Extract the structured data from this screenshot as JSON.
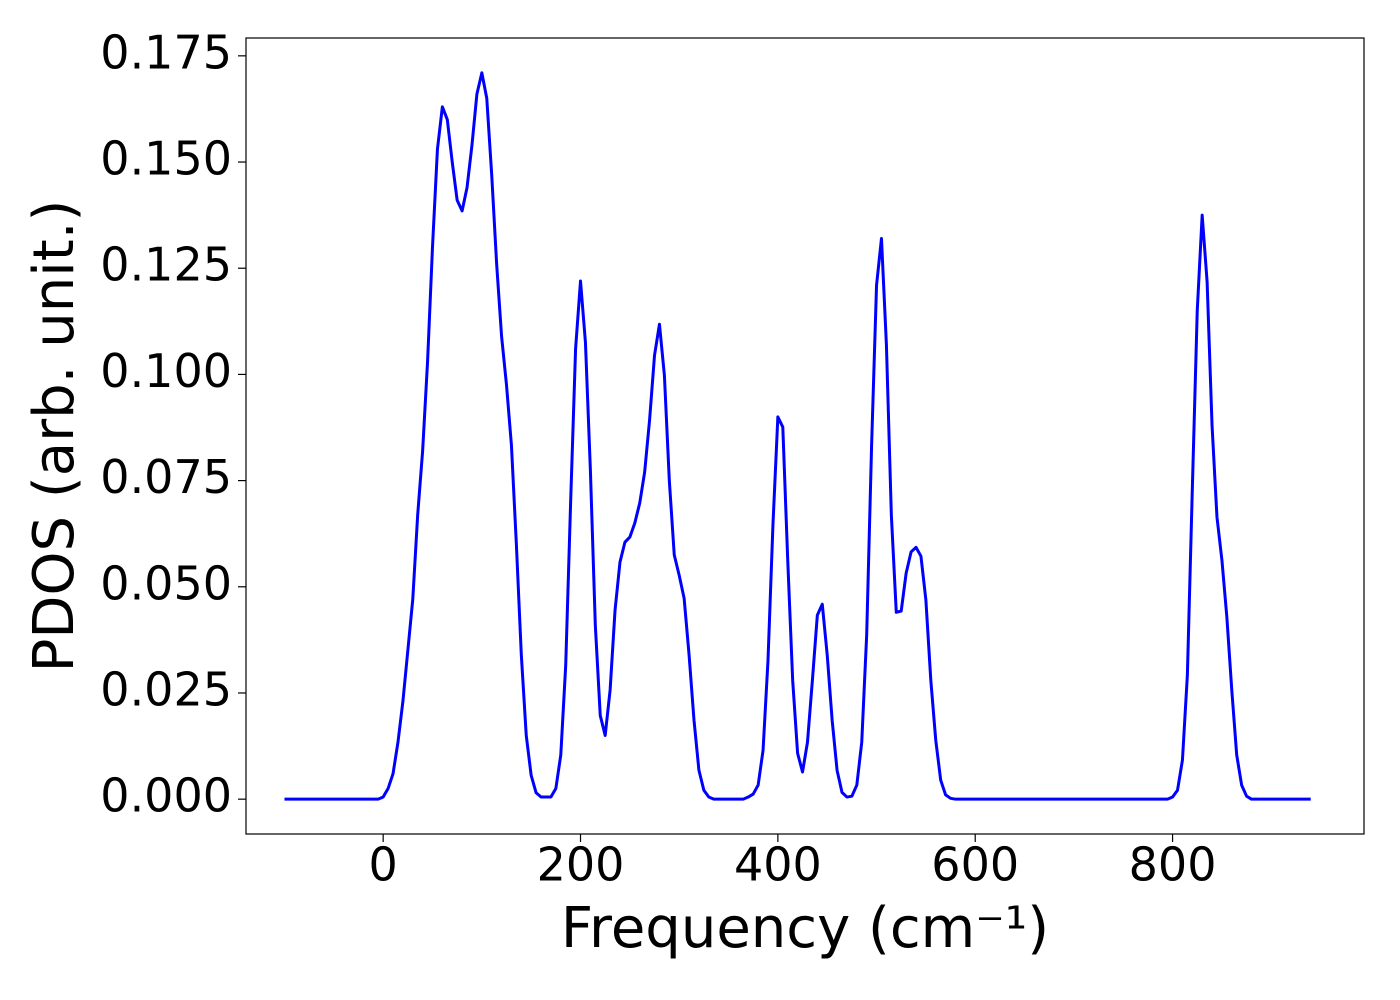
{
  "chart_data": {
    "type": "line",
    "xlabel": "Frequency (cm⁻¹)",
    "ylabel": "PDOS (arb. unit.)",
    "color": "#0000ff",
    "x": [
      -100,
      -5,
      0,
      5,
      10,
      15,
      20,
      25,
      30,
      35,
      40,
      45,
      50,
      55,
      60,
      65,
      70,
      75,
      80,
      85,
      90,
      95,
      100,
      105,
      110,
      115,
      120,
      125,
      130,
      135,
      140,
      145,
      150,
      155,
      160,
      165,
      170,
      175,
      180,
      185,
      190,
      195,
      200,
      205,
      210,
      215,
      220,
      225,
      230,
      235,
      240,
      245,
      250,
      255,
      260,
      265,
      270,
      275,
      280,
      285,
      290,
      295,
      300,
      305,
      310,
      315,
      320,
      325,
      330,
      335,
      365,
      370,
      375,
      380,
      385,
      390,
      395,
      400,
      405,
      410,
      415,
      420,
      425,
      430,
      435,
      440,
      445,
      450,
      455,
      460,
      465,
      470,
      475,
      480,
      485,
      490,
      495,
      500,
      505,
      510,
      515,
      520,
      525,
      530,
      535,
      540,
      545,
      550,
      555,
      560,
      565,
      570,
      575,
      580,
      795,
      800,
      805,
      810,
      815,
      820,
      825,
      830,
      835,
      840,
      845,
      850,
      855,
      860,
      865,
      870,
      875,
      880,
      940
    ],
    "values": [
      0,
      0,
      0.0005,
      0.0025,
      0.006,
      0.0134,
      0.023,
      0.035,
      0.047,
      0.067,
      0.082,
      0.103,
      0.13,
      0.153,
      0.163,
      0.16,
      0.15,
      0.141,
      0.1385,
      0.144,
      0.154,
      0.166,
      0.171,
      0.165,
      0.147,
      0.126,
      0.109,
      0.0975,
      0.0833,
      0.06,
      0.034,
      0.015,
      0.0056,
      0.0015,
      0.0005,
      0.0005,
      0.0005,
      0.0025,
      0.0104,
      0.0315,
      0.07,
      0.106,
      0.122,
      0.1075,
      0.0775,
      0.041,
      0.0197,
      0.015,
      0.0257,
      0.0445,
      0.0558,
      0.0605,
      0.0617,
      0.065,
      0.0697,
      0.077,
      0.0893,
      0.1045,
      0.1118,
      0.0998,
      0.075,
      0.0575,
      0.0527,
      0.0473,
      0.034,
      0.0186,
      0.0068,
      0.0021,
      0.0005,
      0,
      0,
      0.0005,
      0.0012,
      0.0033,
      0.0115,
      0.0327,
      0.0645,
      0.09,
      0.0876,
      0.0563,
      0.028,
      0.0108,
      0.0064,
      0.0134,
      0.028,
      0.0433,
      0.0459,
      0.034,
      0.0186,
      0.0068,
      0.0016,
      0.0005,
      0.0007,
      0.0033,
      0.0134,
      0.0386,
      0.0834,
      0.121,
      0.132,
      0.107,
      0.0669,
      0.044,
      0.0443,
      0.0532,
      0.0582,
      0.0593,
      0.0572,
      0.0469,
      0.028,
      0.0139,
      0.0045,
      0.001,
      0.0002,
      0,
      0,
      0.0005,
      0.0021,
      0.0092,
      0.0292,
      0.0728,
      0.115,
      0.1375,
      0.1218,
      0.088,
      0.0664,
      0.0563,
      0.0429,
      0.0257,
      0.0104,
      0.0033,
      0.0007,
      0,
      0
    ],
    "xlim": [
      -139,
      994
    ],
    "ylim": [
      -0.0082,
      0.1792
    ],
    "xticks": [
      0,
      200,
      400,
      600,
      800
    ],
    "yticks": [
      {
        "value": 0,
        "label": "0.000"
      },
      {
        "value": 0.025,
        "label": "0.025"
      },
      {
        "value": 0.05,
        "label": "0.050"
      },
      {
        "value": 0.075,
        "label": "0.075"
      },
      {
        "value": 0.1,
        "label": "0.100"
      },
      {
        "value": 0.125,
        "label": "0.125"
      },
      {
        "value": 0.15,
        "label": "0.150"
      },
      {
        "value": 0.175,
        "label": "0.175"
      }
    ],
    "grid": false
  }
}
